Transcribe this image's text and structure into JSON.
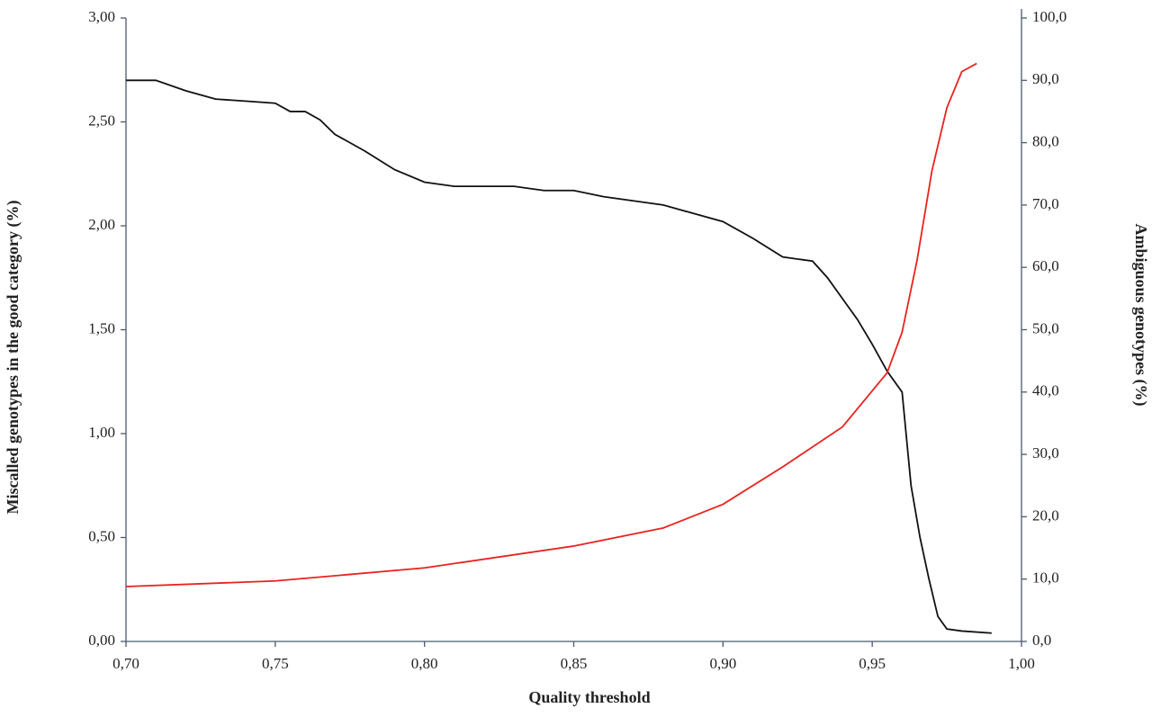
{
  "chart_data": {
    "type": "line",
    "xlabel": "Quality threshold",
    "ylabel": "Miscalled genotypes in the good category (%)",
    "y2label": "Ambiguous genotypes (%)",
    "xlim": [
      0.7,
      1.0
    ],
    "xticks": [
      {
        "value": 0.7,
        "label": "0,70"
      },
      {
        "value": 0.75,
        "label": "0,75"
      },
      {
        "value": 0.8,
        "label": "0,80"
      },
      {
        "value": 0.85,
        "label": "0,85"
      },
      {
        "value": 0.9,
        "label": "0,90"
      },
      {
        "value": 0.95,
        "label": "0,95"
      },
      {
        "value": 1.0,
        "label": "1,00"
      }
    ],
    "ylim": [
      0,
      3
    ],
    "yticks": [
      {
        "value": 0,
        "label": "0,00"
      },
      {
        "value": 0.5,
        "label": "0,50"
      },
      {
        "value": 1.0,
        "label": "1,00"
      },
      {
        "value": 1.5,
        "label": "1,50"
      },
      {
        "value": 2.0,
        "label": "2,00"
      },
      {
        "value": 2.5,
        "label": "2,50"
      },
      {
        "value": 3.0,
        "label": "3,00"
      }
    ],
    "y2lim": [
      0,
      100
    ],
    "y2ticks": [
      {
        "value": 0,
        "label": "0,0"
      },
      {
        "value": 10,
        "label": "10,0"
      },
      {
        "value": 20,
        "label": "20,0"
      },
      {
        "value": 30,
        "label": "30,0"
      },
      {
        "value": 40,
        "label": "40,0"
      },
      {
        "value": 50,
        "label": "50,0"
      },
      {
        "value": 60,
        "label": "60,0"
      },
      {
        "value": 70,
        "label": "70,0"
      },
      {
        "value": 80,
        "label": "80,0"
      },
      {
        "value": 90,
        "label": "90,0"
      },
      {
        "value": 100,
        "label": "100,0"
      }
    ],
    "series": [
      {
        "color": "#111111",
        "x": [
          0.7,
          0.71,
          0.72,
          0.73,
          0.74,
          0.75,
          0.755,
          0.76,
          0.765,
          0.77,
          0.78,
          0.79,
          0.8,
          0.81,
          0.83,
          0.84,
          0.85,
          0.86,
          0.87,
          0.88,
          0.89,
          0.9,
          0.91,
          0.92,
          0.93,
          0.935,
          0.94,
          0.945,
          0.95,
          0.955,
          0.96,
          0.963,
          0.966,
          0.969,
          0.972,
          0.975,
          0.98,
          0.99
        ],
        "values": [
          2.7,
          2.7,
          2.65,
          2.61,
          2.6,
          2.59,
          2.55,
          2.55,
          2.51,
          2.44,
          2.36,
          2.27,
          2.21,
          2.19,
          2.19,
          2.17,
          2.17,
          2.14,
          2.12,
          2.1,
          2.06,
          2.02,
          1.94,
          1.85,
          1.83,
          1.75,
          1.65,
          1.55,
          1.43,
          1.3,
          1.2,
          0.75,
          0.5,
          0.3,
          0.12,
          0.06,
          0.05,
          0.04
        ]
      },
      {
        "color": "#e8231f",
        "axis": "y2",
        "x": [
          0.7,
          0.75,
          0.8,
          0.85,
          0.88,
          0.9,
          0.92,
          0.94,
          0.95,
          0.955,
          0.96,
          0.965,
          0.97,
          0.975,
          0.98,
          0.985
        ],
        "values": [
          8.8,
          9.7,
          11.8,
          15.3,
          18.2,
          22.0,
          28.0,
          34.4,
          40.2,
          43.1,
          49.6,
          61.1,
          75.5,
          85.6,
          91.4,
          92.7
        ]
      }
    ]
  }
}
